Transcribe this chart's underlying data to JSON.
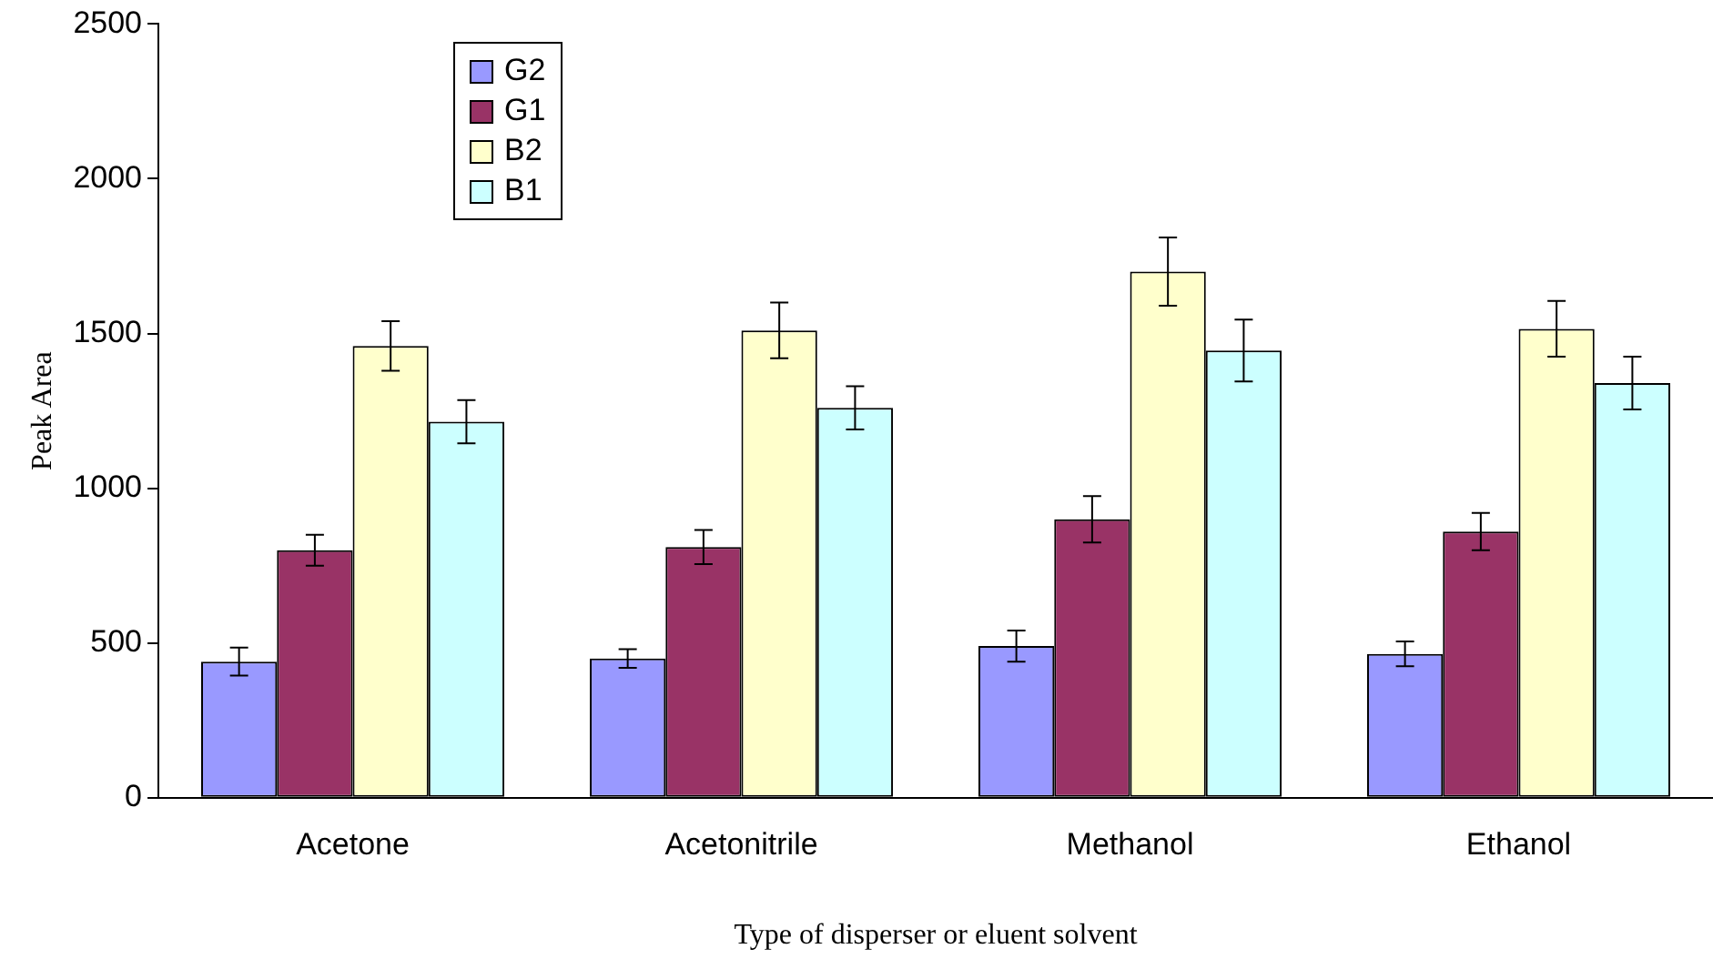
{
  "chart_data": {
    "type": "bar",
    "xlabel": "Type of disperser or eluent solvent",
    "ylabel": "Peak Area",
    "categories": [
      "Acetone",
      "Acetonitrile",
      "Methanol",
      "Ethanol"
    ],
    "series": [
      {
        "name": "G2",
        "color": "#9999ff",
        "values": [
          440,
          450,
          490,
          465
        ],
        "errors": [
          45,
          30,
          50,
          40
        ]
      },
      {
        "name": "G1",
        "color": "#993366",
        "values": [
          800,
          810,
          900,
          860
        ],
        "errors": [
          50,
          55,
          75,
          60
        ]
      },
      {
        "name": "B2",
        "color": "#ffffcc",
        "values": [
          1460,
          1510,
          1700,
          1515
        ],
        "errors": [
          80,
          90,
          110,
          90
        ]
      },
      {
        "name": "B1",
        "color": "#ccffff",
        "values": [
          1215,
          1260,
          1445,
          1340
        ],
        "errors": [
          70,
          70,
          100,
          85
        ]
      }
    ],
    "ylim": [
      0,
      2500
    ],
    "yticks": [
      0,
      500,
      1000,
      1500,
      2000,
      2500
    ],
    "grid": false,
    "legend": "top left"
  }
}
